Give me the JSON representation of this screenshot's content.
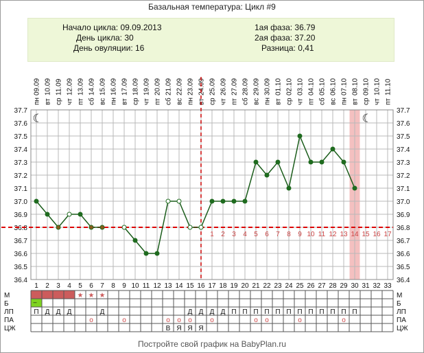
{
  "title": "Базальная температура: Цикл #9",
  "info": {
    "cycle_start": "Начало цикла: 09.09.2013",
    "cycle_day": "День цикла: 30",
    "ovulation_day": "День овуляции: 16",
    "phase1": "1ая фаза: 36.79",
    "phase2": "2ая фаза: 37.20",
    "difference": "Разница: 0,41"
  },
  "footer": "Постройте свой график на BabyPlan.ru",
  "colors": {
    "line": "#1a5c1a",
    "dot": "#1f6b1f",
    "coverline": "#dd0000",
    "ovulation_line": "#cc0000",
    "highlight": "#f4c0c0",
    "grid": "#b8b8b8",
    "menstruation": "#cc5c5c",
    "green_mark": "#7ed321",
    "luteal_numbers": "#cc4444"
  },
  "chart_data": {
    "type": "line",
    "x": [
      1,
      2,
      3,
      4,
      5,
      6,
      7,
      8,
      9,
      10,
      11,
      12,
      13,
      14,
      15,
      16,
      17,
      18,
      19,
      20,
      21,
      22,
      23,
      24,
      25,
      26,
      27,
      28,
      29,
      30,
      31,
      32,
      33
    ],
    "weekdays": [
      "пн",
      "вт",
      "ср",
      "чт",
      "пт",
      "сб",
      "вс",
      "пн",
      "вт",
      "ср",
      "чт",
      "пт",
      "сб",
      "вс",
      "пн",
      "вт",
      "ср",
      "чт",
      "пт",
      "сб",
      "вс",
      "пн",
      "вт",
      "ср",
      "чт",
      "пт",
      "сб",
      "вс",
      "пн",
      "вт",
      "ср",
      "чт",
      "пт"
    ],
    "dates": [
      "09.09",
      "10.09",
      "11.09",
      "12.09",
      "13.09",
      "14.09",
      "15.09",
      "16.09",
      "17.09",
      "18.09",
      "19.09",
      "20.09",
      "21.09",
      "22.09",
      "23.09",
      "24.09",
      "25.09",
      "26.09",
      "27.09",
      "28.09",
      "29.09",
      "30.09",
      "01.10",
      "02.10",
      "03.10",
      "04.10",
      "05.10",
      "06.10",
      "07.10",
      "08.10",
      "09.10",
      "10.10",
      "11.10"
    ],
    "y": [
      37.0,
      36.9,
      36.8,
      36.9,
      36.9,
      36.8,
      36.8,
      null,
      36.8,
      36.7,
      36.6,
      36.6,
      37.0,
      37.0,
      36.8,
      36.8,
      37.0,
      37.0,
      37.0,
      37.0,
      37.3,
      37.2,
      37.3,
      37.1,
      37.5,
      37.3,
      37.3,
      37.4,
      37.3,
      37.1,
      null,
      null,
      null
    ],
    "markers": [
      "filled",
      "filled",
      "filled-orange",
      "open",
      "filled",
      "filled-orange",
      "filled-orange",
      null,
      "open",
      "filled",
      "filled",
      "filled",
      "open",
      "open",
      "open",
      "open",
      "filled",
      "filled",
      "filled",
      "filled",
      "filled",
      "filled",
      "filled",
      "filled",
      "filled",
      "filled",
      "filled",
      "filled",
      "filled",
      "filled",
      null,
      null,
      null
    ],
    "ylim": [
      36.4,
      37.7
    ],
    "yticks": [
      "36.4",
      "36.5",
      "36.6",
      "36.7",
      "36.8",
      "36.9",
      "37.0",
      "37.1",
      "37.2",
      "37.3",
      "37.4",
      "37.5",
      "37.6",
      "37.7"
    ],
    "coverline": 36.8,
    "ovulation_day": 16,
    "highlight_day": 30,
    "moon_days": [
      1,
      31
    ],
    "luteal_numbers": [
      "1",
      "2",
      "3",
      "4",
      "5",
      "6",
      "7",
      "8",
      "9",
      "10",
      "11",
      "12",
      "13",
      "14",
      "15",
      "16",
      "17"
    ],
    "luteal_start_day": 17,
    "grid": true
  },
  "table": {
    "labels_left": [
      "М",
      "Б",
      "ЛП",
      "ПА",
      "ЦЖ"
    ],
    "labels_right": [
      "М",
      "Б",
      "ЛП",
      "ПА",
      "ЦЖ"
    ],
    "menstruation_days": [
      1,
      2,
      3,
      4
    ],
    "star_days": [
      5,
      6,
      7
    ],
    "star_glyph": "★",
    "green_days": [
      1
    ],
    "green_glyph": "–",
    "lp": {
      "1": "П",
      "2": "Д",
      "3": "Д",
      "4": "Д",
      "7": "Д",
      "15": "Д",
      "16": "Д",
      "17": "Д",
      "18": "Д",
      "19": "П",
      "20": "П",
      "21": "П",
      "22": "П",
      "23": "П",
      "24": "П",
      "25": "П",
      "26": "П",
      "27": "П",
      "28": "П",
      "29": "П",
      "30": "П"
    },
    "pa": {
      "6": "о",
      "9": "о",
      "13": "о",
      "14": "о",
      "15": "о",
      "17": "о",
      "21": "о",
      "22": "о",
      "25": "о",
      "29": "о"
    },
    "cj": {
      "13": "В",
      "14": "Я",
      "15": "Я",
      "16": "Я"
    }
  }
}
